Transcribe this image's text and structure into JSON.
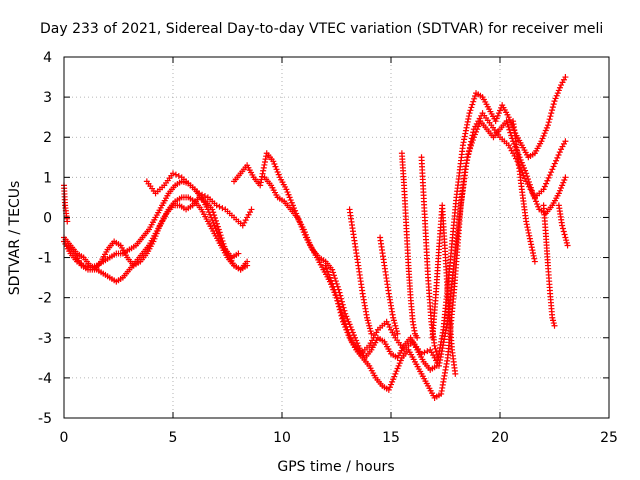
{
  "chart_data": {
    "type": "scatter",
    "title": "Day 233 of 2021, Sidereal Day-to-day VTEC variation (SDTVAR) for receiver meli",
    "xlabel": "GPS time / hours",
    "ylabel": "SDTVAR / TECUs",
    "xlim": [
      0,
      25
    ],
    "ylim": [
      -5,
      4
    ],
    "xticks": [
      0,
      5,
      10,
      15,
      20,
      25
    ],
    "yticks": [
      -5,
      -4,
      -3,
      -2,
      -1,
      0,
      1,
      2,
      3,
      4
    ],
    "grid": true,
    "marker": "+",
    "color": "#ff0000",
    "series": [
      {
        "name": "s1",
        "x": [
          0.0,
          0.3,
          0.6,
          0.9,
          1.2,
          1.5,
          1.8,
          2.1,
          2.4,
          2.7,
          3.0,
          3.3,
          3.6,
          3.9,
          4.2,
          4.5,
          4.8,
          5.1,
          5.4,
          5.7,
          6.0,
          6.3,
          6.6,
          6.9,
          7.2,
          7.5,
          7.8,
          8.1,
          8.4
        ],
        "values": [
          -0.6,
          -0.9,
          -1.1,
          -1.2,
          -1.25,
          -1.2,
          -1.1,
          -1.0,
          -0.9,
          -0.9,
          -0.8,
          -0.7,
          -0.5,
          -0.3,
          0.0,
          0.3,
          0.6,
          0.8,
          0.9,
          0.85,
          0.7,
          0.5,
          0.2,
          -0.2,
          -0.6,
          -0.9,
          -1.2,
          -1.3,
          -1.1
        ]
      },
      {
        "name": "s2",
        "x": [
          0.0,
          0.3,
          0.6,
          0.9,
          1.2,
          1.5,
          1.8,
          2.1,
          2.4,
          2.7,
          3.0,
          3.3,
          3.6,
          3.9,
          4.2,
          4.5,
          4.8,
          5.1,
          5.4,
          5.7,
          6.0,
          6.3,
          6.6,
          6.9,
          7.2,
          7.5,
          7.8,
          8.1,
          8.4
        ],
        "values": [
          -0.5,
          -0.7,
          -0.9,
          -1.0,
          -1.2,
          -1.3,
          -1.4,
          -1.5,
          -1.6,
          -1.5,
          -1.3,
          -1.1,
          -0.9,
          -0.7,
          -0.4,
          -0.1,
          0.2,
          0.4,
          0.5,
          0.5,
          0.4,
          0.2,
          -0.1,
          -0.4,
          -0.7,
          -1.0,
          -1.2,
          -1.3,
          -1.2
        ]
      },
      {
        "name": "s3",
        "x": [
          0.2,
          0.5,
          0.8,
          1.1,
          1.4,
          1.7,
          2.0,
          2.3,
          2.6,
          2.9,
          3.2,
          3.5,
          3.8,
          4.1,
          4.4,
          4.7,
          5.0,
          5.3,
          5.6,
          5.9,
          6.2,
          6.5,
          6.8,
          7.1,
          7.4,
          7.7,
          8.0
        ],
        "values": [
          -0.7,
          -0.9,
          -1.2,
          -1.3,
          -1.3,
          -1.1,
          -0.8,
          -0.6,
          -0.7,
          -1.0,
          -1.2,
          -1.1,
          -0.9,
          -0.6,
          -0.2,
          0.1,
          0.3,
          0.3,
          0.2,
          0.3,
          0.5,
          0.4,
          0.2,
          -0.3,
          -0.8,
          -1.0,
          -0.9
        ]
      },
      {
        "name": "s4",
        "x": [
          3.8,
          4.2,
          4.6,
          5.0,
          5.4,
          5.8,
          6.2,
          6.6,
          7.0,
          7.4,
          7.8,
          8.2,
          8.6
        ],
        "values": [
          0.9,
          0.6,
          0.8,
          1.1,
          1.0,
          0.8,
          0.6,
          0.5,
          0.3,
          0.2,
          0.0,
          -0.2,
          0.2
        ]
      },
      {
        "name": "s5",
        "x": [
          7.8,
          8.1,
          8.4,
          8.7,
          9.0,
          9.3,
          9.6,
          9.9,
          10.2,
          10.5,
          10.8,
          11.1,
          11.4,
          11.7,
          12.0,
          12.3,
          12.6,
          12.9,
          13.2,
          13.5,
          13.8,
          14.1,
          14.4,
          14.7,
          15.0,
          15.3,
          15.6,
          15.9,
          16.2,
          16.5,
          16.8,
          17.1,
          17.4,
          17.7,
          18.0,
          18.3,
          18.6,
          18.9,
          19.2,
          19.5,
          19.8,
          20.1,
          20.4,
          20.7,
          21.0,
          21.3,
          21.6,
          21.9,
          22.2,
          22.5,
          22.8,
          23.0
        ],
        "values": [
          0.9,
          1.1,
          1.3,
          1.0,
          0.8,
          1.6,
          1.4,
          1.0,
          0.7,
          0.3,
          -0.1,
          -0.5,
          -0.8,
          -1.0,
          -1.1,
          -1.3,
          -1.8,
          -2.4,
          -2.8,
          -3.2,
          -3.5,
          -3.3,
          -3.0,
          -3.1,
          -3.4,
          -3.5,
          -3.2,
          -3.0,
          -3.3,
          -3.6,
          -3.8,
          -3.7,
          -2.8,
          -1.2,
          0.5,
          1.8,
          2.6,
          3.1,
          3.0,
          2.7,
          2.4,
          2.8,
          2.5,
          2.1,
          1.8,
          1.5,
          1.6,
          1.9,
          2.3,
          2.9,
          3.3,
          3.5
        ]
      },
      {
        "name": "s6",
        "x": [
          9.2,
          9.5,
          9.8,
          10.1,
          10.4,
          10.7,
          11.0,
          11.3,
          11.6,
          11.9,
          12.2,
          12.5,
          12.8,
          13.1,
          13.4,
          13.7,
          14.0,
          14.3,
          14.6,
          14.9,
          15.2,
          15.5,
          15.8,
          16.1,
          16.4,
          16.7,
          17.0,
          17.3,
          17.6,
          17.9,
          18.2,
          18.5,
          18.8,
          19.1,
          19.4,
          19.7,
          20.0,
          20.3,
          20.6,
          20.9,
          21.2,
          21.5,
          21.8,
          22.1,
          22.4,
          22.7,
          23.0
        ],
        "values": [
          1.0,
          0.8,
          0.5,
          0.4,
          0.2,
          0.0,
          -0.3,
          -0.7,
          -1.0,
          -1.3,
          -1.6,
          -2.0,
          -2.6,
          -3.0,
          -3.3,
          -3.5,
          -3.7,
          -4.0,
          -4.2,
          -4.3,
          -3.9,
          -3.5,
          -3.3,
          -3.6,
          -3.9,
          -4.2,
          -4.5,
          -4.4,
          -3.5,
          -1.8,
          0.3,
          1.5,
          2.0,
          2.4,
          2.2,
          2.0,
          2.2,
          2.4,
          1.9,
          1.5,
          1.1,
          0.6,
          0.2,
          0.1,
          0.3,
          0.6,
          1.0
        ]
      },
      {
        "name": "s7",
        "x": [
          12.0,
          12.4,
          12.8,
          13.2,
          13.6,
          14.0,
          14.4,
          14.8,
          15.2,
          15.6,
          16.0,
          16.4,
          16.8,
          17.2,
          17.6,
          18.0,
          18.4,
          18.8,
          19.2,
          19.6,
          20.0,
          20.4,
          20.8,
          21.2,
          21.6,
          22.0,
          22.4,
          22.8,
          23.0
        ],
        "values": [
          -1.2,
          -1.8,
          -2.5,
          -3.1,
          -3.4,
          -3.2,
          -2.8,
          -2.6,
          -3.0,
          -3.3,
          -3.1,
          -3.4,
          -3.3,
          -3.7,
          -2.6,
          -0.6,
          1.2,
          2.2,
          2.6,
          2.3,
          2.0,
          1.8,
          1.4,
          0.9,
          0.5,
          0.7,
          1.2,
          1.7,
          1.9
        ]
      },
      {
        "name": "s8",
        "x": [
          16.9,
          17.05,
          17.2,
          17.35,
          17.5,
          17.65,
          17.8,
          17.95
        ],
        "values": [
          -3.0,
          -2.0,
          -0.8,
          0.3,
          -1.0,
          -2.3,
          -3.3,
          -3.9
        ]
      },
      {
        "name": "s9",
        "x": [
          15.5,
          15.6,
          15.7,
          15.8,
          15.9,
          16.0,
          16.1,
          16.2
        ],
        "values": [
          1.6,
          0.8,
          -0.2,
          -1.2,
          -2.0,
          -2.6,
          -2.9,
          -3.0
        ]
      },
      {
        "name": "s10",
        "x": [
          16.4,
          16.55,
          16.7,
          16.85,
          17.0,
          17.15
        ],
        "values": [
          1.5,
          0.0,
          -1.5,
          -2.6,
          -3.2,
          -3.5
        ]
      },
      {
        "name": "s11",
        "x": [
          13.1,
          13.3,
          13.5,
          13.7,
          13.9,
          14.1
        ],
        "values": [
          0.2,
          -0.5,
          -1.2,
          -1.9,
          -2.5,
          -2.9
        ]
      },
      {
        "name": "s12",
        "x": [
          14.5,
          14.7,
          14.9,
          15.1,
          15.3
        ],
        "values": [
          -0.5,
          -1.2,
          -1.9,
          -2.5,
          -2.9
        ]
      },
      {
        "name": "s13",
        "x": [
          20.6,
          20.8,
          21.0,
          21.2,
          21.4,
          21.6
        ],
        "values": [
          2.4,
          1.6,
          0.7,
          -0.1,
          -0.6,
          -1.1
        ]
      },
      {
        "name": "s14",
        "x": [
          22.0,
          22.1,
          22.2,
          22.3,
          22.4,
          22.5
        ],
        "values": [
          0.3,
          -0.4,
          -1.2,
          -1.9,
          -2.5,
          -2.7
        ]
      },
      {
        "name": "s15",
        "x": [
          0.0,
          0.05,
          0.1,
          0.15
        ],
        "values": [
          0.8,
          0.3,
          0.1,
          -0.1
        ]
      },
      {
        "name": "s16",
        "x": [
          22.7,
          22.85,
          23.0,
          23.1
        ],
        "values": [
          0.3,
          -0.2,
          -0.5,
          -0.7
        ]
      }
    ]
  }
}
